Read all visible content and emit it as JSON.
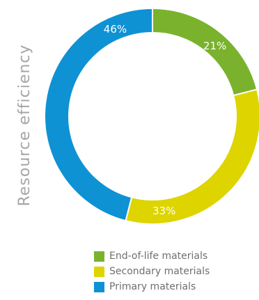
{
  "chart_data": {
    "type": "pie",
    "ylabel": "Resource efficiency",
    "categories": [
      "End-of-life materials",
      "Secondary materials",
      "Primary materials"
    ],
    "values": [
      21,
      33,
      46
    ],
    "labels": [
      "21%",
      "33%",
      "46%"
    ],
    "colors": [
      "#7ab22e",
      "#ddd400",
      "#0e92d4"
    ],
    "legend_position": "bottom-right"
  }
}
